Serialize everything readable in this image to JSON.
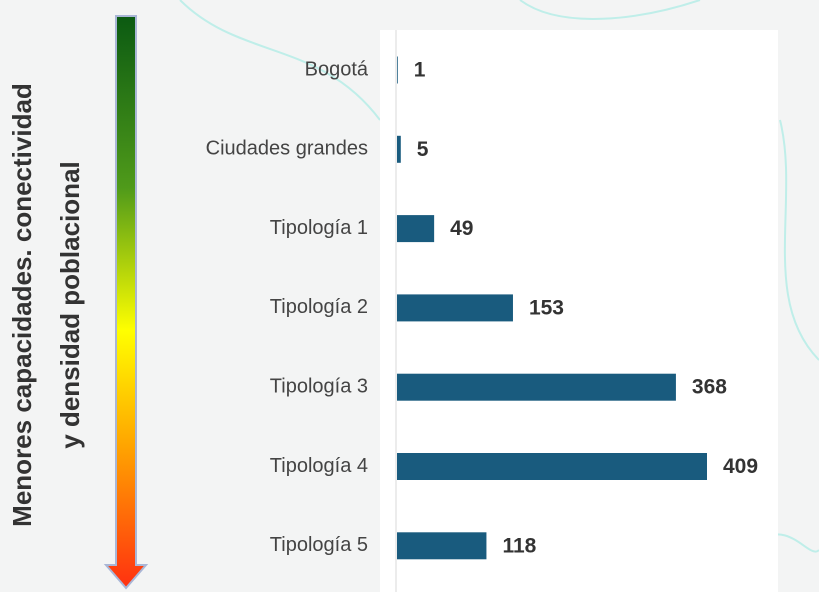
{
  "chart_data": {
    "type": "bar",
    "orientation": "horizontal",
    "annotations": [
      "Menores capacidades. conectividad",
      "y densidad poblacional"
    ],
    "categories": [
      "Bogotá",
      "Ciudades grandes",
      "Tipología 1",
      "Tipología 2",
      "Tipología 3",
      "Tipología 4",
      "Tipología 5"
    ],
    "values": [
      1,
      5,
      49,
      153,
      368,
      409,
      118
    ],
    "color": "#195b7e"
  }
}
